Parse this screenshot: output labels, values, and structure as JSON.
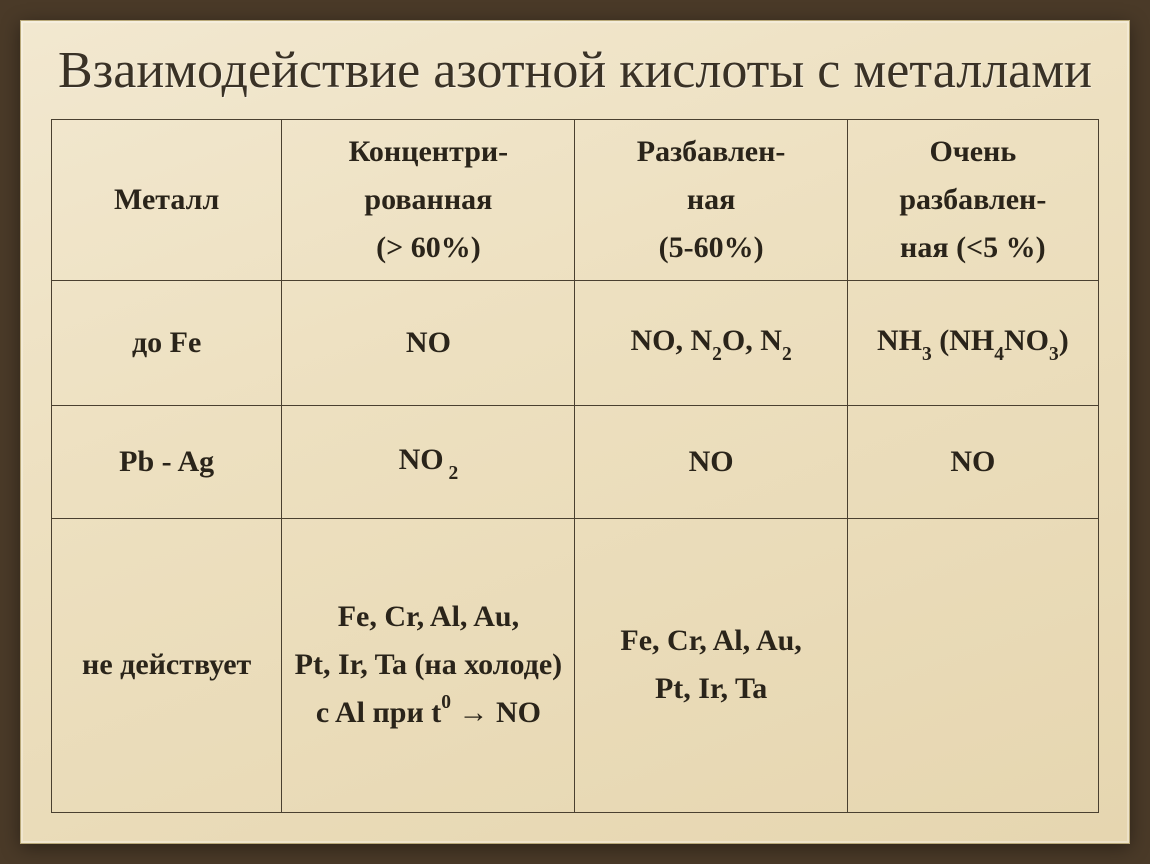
{
  "title": "Взаимодействие азотной кислоты с металлами",
  "title_fontsize": 52,
  "header_fontsize": 30,
  "cell_fontsize": 30,
  "colors": {
    "slide_bg_top": "#f2e8d0",
    "slide_bg_bottom": "#e6d6b0",
    "border": "#4a4030",
    "text": "#2a241a",
    "title": "#3a3226",
    "outer_bg": "#4a3a28"
  },
  "table": {
    "columns": [
      {
        "key": "metal",
        "label": "Металл"
      },
      {
        "key": "conc",
        "label_line1": "Концентри-",
        "label_line2": "рованная",
        "label_line3": "(> 60%)"
      },
      {
        "key": "dilute",
        "label_line1": "Разбавлен-",
        "label_line2": "ная",
        "label_line3": "(5-60%)"
      },
      {
        "key": "vdilute",
        "label_line1": "Очень",
        "label_line2": "разбавлен-",
        "label_line3": "ная (<5 %)"
      }
    ],
    "rows": [
      {
        "metal": "до Fe",
        "conc": "NO",
        "dilute_parts": [
          "NO, ",
          "N",
          "2",
          "O, ",
          "N",
          "2"
        ],
        "vdilute_parts": [
          "NH",
          "3",
          " (NH",
          "4",
          "NO",
          "3",
          ")"
        ]
      },
      {
        "metal": "Pb - Ag",
        "conc_parts": [
          "NO",
          " 2"
        ],
        "dilute": "NO",
        "vdilute": "NO"
      },
      {
        "metal": "не действует",
        "conc_line1": "Fe, Cr, Al, Au,",
        "conc_line2": "Pt, Ir, Ta (на холоде)",
        "conc_line3_pre": "c Al при  t",
        "conc_line3_sup": "0",
        "conc_line3_post": " → NO",
        "dilute_line1": "Fe, Cr, Al, Au,",
        "dilute_line2": "Pt, Ir, Ta",
        "vdilute": ""
      }
    ],
    "col_widths_pct": [
      22,
      28,
      26,
      24
    ]
  }
}
